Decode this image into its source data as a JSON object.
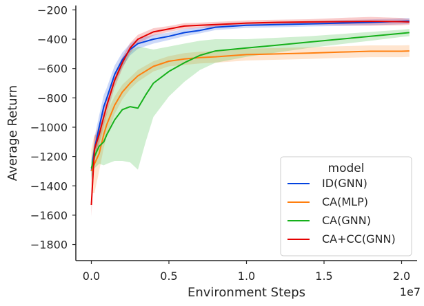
{
  "chart_data": {
    "type": "line",
    "xlabel": "Environment Steps",
    "ylabel": "Average Return",
    "x_offset_label": "1e7",
    "xlim": [
      -0.1,
      2.1
    ],
    "ylim": [
      -1910,
      -170
    ],
    "xticks": [
      0.0,
      0.5,
      1.0,
      1.5,
      2.0
    ],
    "xtick_labels": [
      "0.0",
      "0.5",
      "1.0",
      "1.5",
      "2.0"
    ],
    "yticks": [
      -200,
      -400,
      -600,
      -800,
      -1000,
      -1200,
      -1400,
      -1600,
      -1800
    ],
    "ytick_labels": [
      "−200",
      "−400",
      "−600",
      "−800",
      "−1000",
      "−1200",
      "−1400",
      "−1600",
      "−1800"
    ],
    "grid": false,
    "legend_title": "model",
    "legend_position": "lower-right",
    "series": [
      {
        "name": "ID(GNN)",
        "color": "#0343df",
        "x": [
          0.0,
          0.02,
          0.05,
          0.08,
          0.1,
          0.15,
          0.2,
          0.25,
          0.3,
          0.4,
          0.5,
          0.6,
          0.7,
          0.8,
          1.0,
          1.2,
          1.4,
          1.6,
          1.8,
          2.0,
          2.05
        ],
        "y": [
          -1300,
          -1150,
          -1000,
          -860,
          -800,
          -640,
          -540,
          -470,
          -430,
          -400,
          -380,
          -355,
          -340,
          -318,
          -305,
          -300,
          -295,
          -290,
          -285,
          -278,
          -276
        ],
        "band": [
          60,
          80,
          80,
          80,
          70,
          60,
          50,
          40,
          35,
          30,
          25,
          25,
          20,
          20,
          18,
          18,
          18,
          20,
          20,
          20,
          20
        ]
      },
      {
        "name": "CA(MLP)",
        "color": "#ff7f0e",
        "x": [
          0.0,
          0.02,
          0.05,
          0.08,
          0.1,
          0.15,
          0.2,
          0.25,
          0.3,
          0.4,
          0.5,
          0.6,
          0.7,
          0.8,
          1.0,
          1.2,
          1.4,
          1.6,
          1.8,
          2.0,
          2.05
        ],
        "y": [
          -1300,
          -1250,
          -1180,
          -1050,
          -980,
          -850,
          -760,
          -700,
          -650,
          -585,
          -550,
          -535,
          -525,
          -520,
          -505,
          -500,
          -495,
          -488,
          -482,
          -482,
          -480
        ],
        "band": [
          150,
          200,
          120,
          90,
          80,
          60,
          50,
          40,
          40,
          35,
          35,
          40,
          40,
          40,
          40,
          40,
          40,
          40,
          40,
          40,
          40
        ]
      },
      {
        "name": "CA(GNN)",
        "color": "#15b01a",
        "x": [
          0.0,
          0.02,
          0.05,
          0.08,
          0.1,
          0.15,
          0.2,
          0.25,
          0.3,
          0.35,
          0.4,
          0.5,
          0.6,
          0.7,
          0.8,
          1.0,
          1.2,
          1.4,
          1.6,
          1.8,
          2.0,
          2.05
        ],
        "y": [
          -1280,
          -1200,
          -1130,
          -1100,
          -1050,
          -950,
          -880,
          -860,
          -870,
          -780,
          -700,
          -620,
          -560,
          -510,
          -480,
          -460,
          -440,
          -420,
          -400,
          -380,
          -360,
          -355
        ],
        "band": [
          60,
          80,
          120,
          160,
          200,
          280,
          350,
          380,
          420,
          320,
          230,
          170,
          130,
          100,
          80,
          60,
          50,
          40,
          35,
          30,
          25,
          25
        ]
      },
      {
        "name": "CA+CC(GNN)",
        "color": "#e50000",
        "x": [
          0.0,
          0.02,
          0.05,
          0.08,
          0.1,
          0.15,
          0.2,
          0.25,
          0.3,
          0.4,
          0.5,
          0.6,
          0.7,
          0.8,
          1.0,
          1.2,
          1.4,
          1.6,
          1.8,
          2.0,
          2.05
        ],
        "y": [
          -1530,
          -1150,
          -1050,
          -930,
          -850,
          -680,
          -560,
          -460,
          -400,
          -350,
          -330,
          -310,
          -305,
          -300,
          -290,
          -285,
          -282,
          -280,
          -278,
          -280,
          -282
        ],
        "band": [
          80,
          80,
          70,
          60,
          60,
          50,
          40,
          35,
          30,
          25,
          20,
          20,
          18,
          18,
          18,
          18,
          18,
          25,
          30,
          25,
          20
        ]
      }
    ]
  }
}
